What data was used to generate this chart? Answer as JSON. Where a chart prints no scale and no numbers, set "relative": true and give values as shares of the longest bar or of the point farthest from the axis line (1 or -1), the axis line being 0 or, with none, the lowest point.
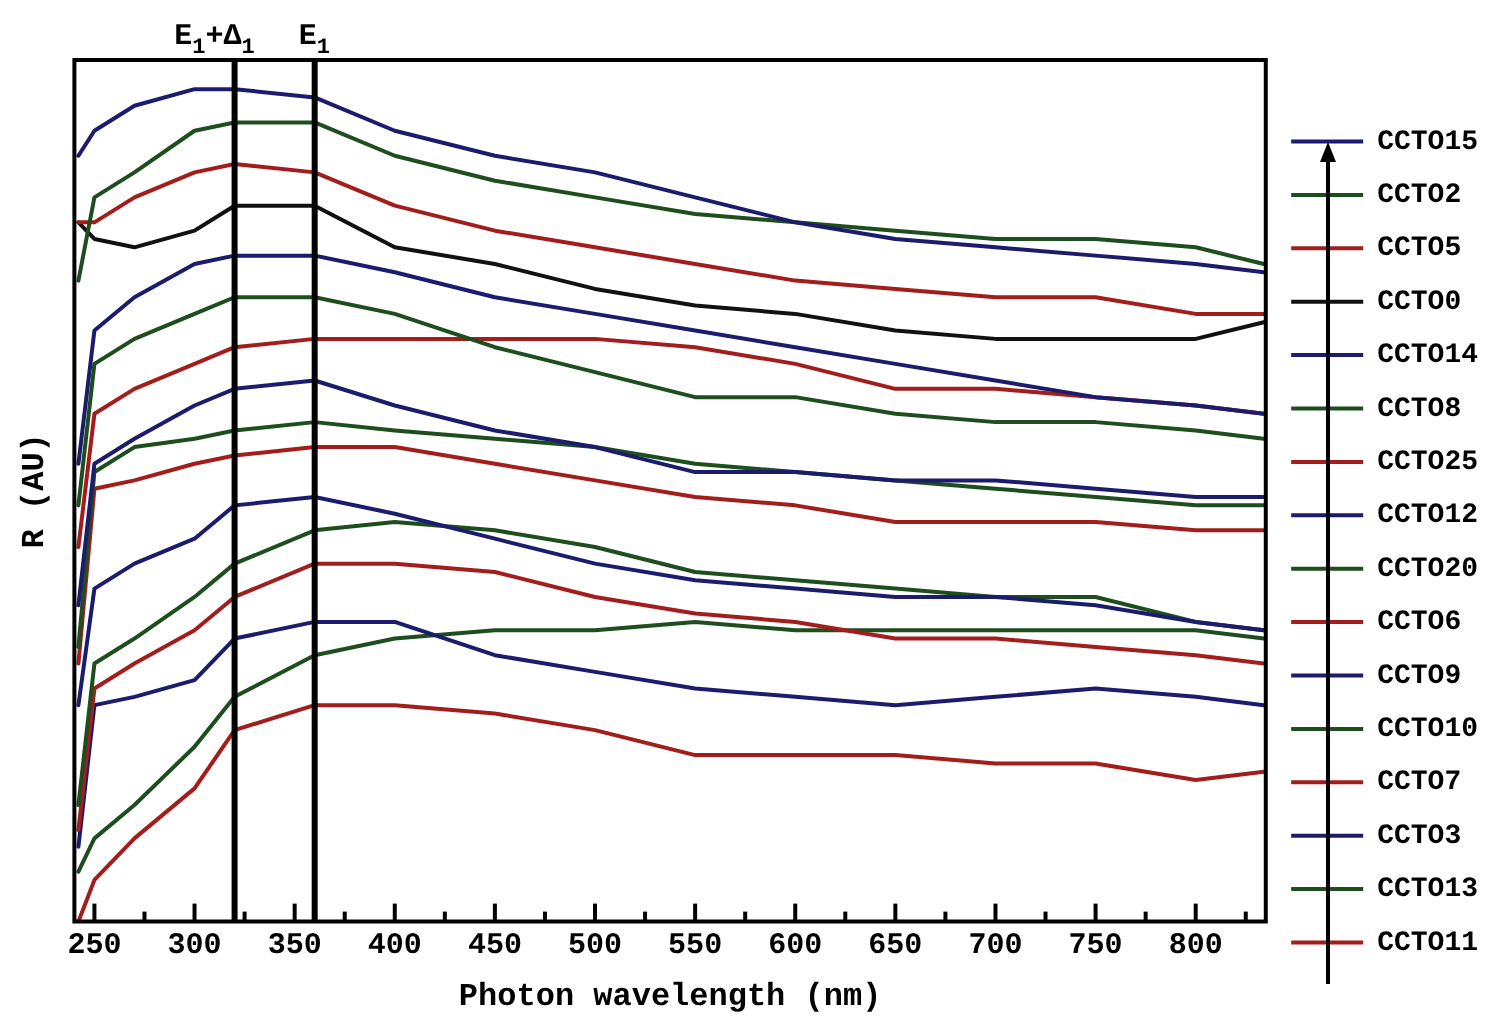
{
  "chart_data": {
    "type": "line",
    "relative": true,
    "xlabel": "Photon wavelength (nm)",
    "ylabel": "R (AU)",
    "legend": "right",
    "tick_labels": "x",
    "xlim": [
      240,
      835
    ],
    "xticks": [
      250,
      {
        "value": 275,
        "label": null
      },
      300,
      {
        "value": 325,
        "label": null
      },
      350,
      {
        "value": 375,
        "label": null
      },
      400,
      {
        "value": 425,
        "label": null
      },
      450,
      {
        "value": 475,
        "label": null
      },
      500,
      {
        "value": 525,
        "label": null
      },
      550,
      {
        "value": 575,
        "label": null
      },
      600,
      {
        "value": 625,
        "label": null
      },
      650,
      {
        "value": 675,
        "label": null
      },
      700,
      {
        "value": 725,
        "label": null
      },
      750,
      {
        "value": 775,
        "label": null
      },
      800,
      {
        "value": 825,
        "label": null
      }
    ],
    "x": [
      242,
      250,
      270,
      300,
      320,
      360,
      400,
      450,
      500,
      550,
      600,
      650,
      700,
      750,
      800,
      834
    ],
    "ref_lines": [
      {
        "axis": "x",
        "value": 320,
        "label": "E$_{1}$+Δ$_{1}$",
        "color": "#000000"
      },
      {
        "axis": "x",
        "value": 360,
        "label": "E$_{1}$",
        "color": "#000000"
      }
    ],
    "series": [
      {
        "name": "CCTO15",
        "color": "#1c1c6e",
        "values": [
          0.92,
          0.95,
          0.98,
          1.0,
          1.0,
          0.99,
          0.95,
          0.92,
          0.9,
          0.87,
          0.84,
          0.82,
          0.81,
          0.8,
          0.79,
          0.78
        ]
      },
      {
        "name": "CCTO2",
        "color": "#1e4d1e",
        "values": [
          0.77,
          0.87,
          0.9,
          0.95,
          0.96,
          0.96,
          0.92,
          0.89,
          0.87,
          0.85,
          0.84,
          0.83,
          0.82,
          0.82,
          0.81,
          0.79
        ]
      },
      {
        "name": "CCTO5",
        "color": "#a31d1d",
        "values": [
          0.84,
          0.84,
          0.87,
          0.9,
          0.91,
          0.9,
          0.86,
          0.83,
          0.81,
          0.79,
          0.77,
          0.76,
          0.75,
          0.75,
          0.73,
          0.73
        ]
      },
      {
        "name": "CCTO0",
        "color": "#111111",
        "values": [
          0.84,
          0.82,
          0.81,
          0.83,
          0.86,
          0.86,
          0.81,
          0.79,
          0.76,
          0.74,
          0.73,
          0.71,
          0.7,
          0.7,
          0.7,
          0.72
        ]
      },
      {
        "name": "CCTO14",
        "color": "#1c1c6e",
        "values": [
          0.55,
          0.71,
          0.75,
          0.79,
          0.8,
          0.8,
          0.78,
          0.75,
          0.73,
          0.71,
          0.69,
          0.67,
          0.65,
          0.63,
          0.62,
          0.61
        ]
      },
      {
        "name": "CCTO8",
        "color": "#1e4d1e",
        "values": [
          0.5,
          0.67,
          0.7,
          0.73,
          0.75,
          0.75,
          0.73,
          0.69,
          0.66,
          0.63,
          0.63,
          0.61,
          0.6,
          0.6,
          0.59,
          0.58
        ]
      },
      {
        "name": "CCTO25",
        "color": "#a31d1d",
        "values": [
          0.45,
          0.61,
          0.64,
          0.67,
          0.69,
          0.7,
          0.7,
          0.7,
          0.7,
          0.69,
          0.67,
          0.64,
          0.64,
          0.63,
          0.62,
          0.61
        ]
      },
      {
        "name": "CCTO12",
        "color": "#1c1c6e",
        "values": [
          0.38,
          0.55,
          0.58,
          0.62,
          0.64,
          0.65,
          0.62,
          0.59,
          0.57,
          0.54,
          0.54,
          0.53,
          0.53,
          0.52,
          0.51,
          0.51
        ]
      },
      {
        "name": "CCTO20",
        "color": "#1e4d1e",
        "values": [
          0.33,
          0.54,
          0.57,
          0.58,
          0.59,
          0.6,
          0.59,
          0.58,
          0.57,
          0.55,
          0.54,
          0.53,
          0.52,
          0.51,
          0.5,
          0.5
        ]
      },
      {
        "name": "CCTO6",
        "color": "#a31d1d",
        "values": [
          0.31,
          0.52,
          0.53,
          0.55,
          0.56,
          0.57,
          0.57,
          0.55,
          0.53,
          0.51,
          0.5,
          0.48,
          0.48,
          0.48,
          0.47,
          0.47
        ]
      },
      {
        "name": "CCTO9",
        "color": "#1c1c6e",
        "values": [
          0.26,
          0.4,
          0.43,
          0.46,
          0.5,
          0.51,
          0.49,
          0.46,
          0.43,
          0.41,
          0.4,
          0.39,
          0.39,
          0.38,
          0.36,
          0.35
        ]
      },
      {
        "name": "CCTO10",
        "color": "#1e4d1e",
        "values": [
          0.14,
          0.31,
          0.34,
          0.39,
          0.43,
          0.47,
          0.48,
          0.47,
          0.45,
          0.42,
          0.41,
          0.4,
          0.39,
          0.39,
          0.36,
          0.35
        ]
      },
      {
        "name": "CCTO7",
        "color": "#a31d1d",
        "values": [
          0.11,
          0.28,
          0.31,
          0.35,
          0.39,
          0.43,
          0.43,
          0.42,
          0.39,
          0.37,
          0.36,
          0.34,
          0.34,
          0.33,
          0.32,
          0.31
        ]
      },
      {
        "name": "CCTO3",
        "color": "#1c1c6e",
        "values": [
          0.09,
          0.26,
          0.27,
          0.29,
          0.34,
          0.36,
          0.36,
          0.32,
          0.3,
          0.28,
          0.27,
          0.26,
          0.27,
          0.28,
          0.27,
          0.26
        ]
      },
      {
        "name": "CCTO13",
        "color": "#1e4d1e",
        "values": [
          0.06,
          0.1,
          0.14,
          0.21,
          0.27,
          0.32,
          0.34,
          0.35,
          0.35,
          0.36,
          0.35,
          0.35,
          0.35,
          0.35,
          0.35,
          0.34
        ]
      },
      {
        "name": "CCTO11",
        "color": "#a31d1d",
        "values": [
          0.0,
          0.05,
          0.1,
          0.16,
          0.23,
          0.26,
          0.26,
          0.25,
          0.23,
          0.2,
          0.2,
          0.2,
          0.19,
          0.19,
          0.17,
          0.18
        ]
      }
    ]
  }
}
